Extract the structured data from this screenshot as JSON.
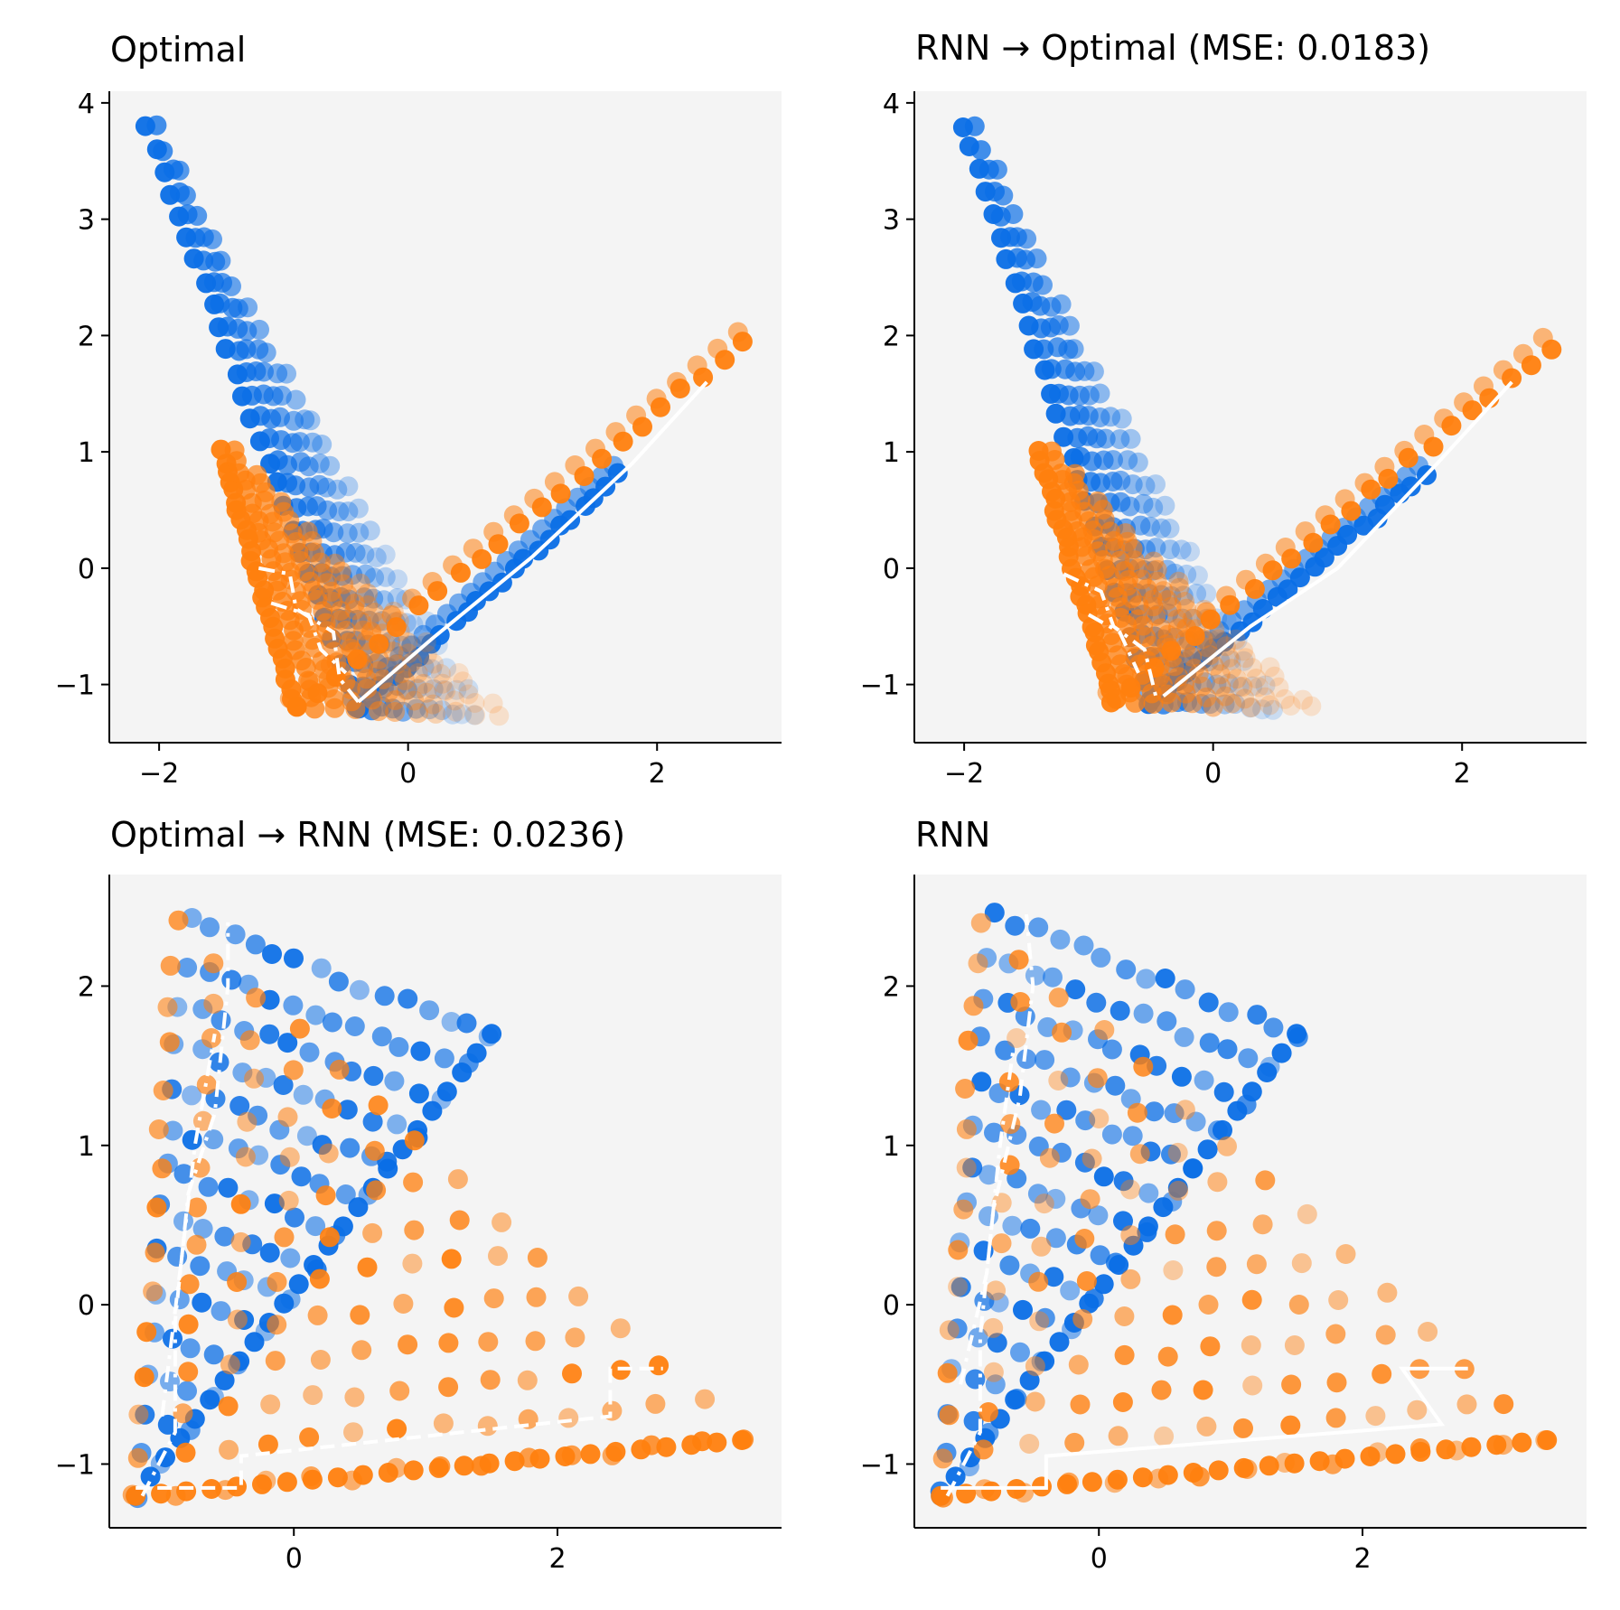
{
  "figure": {
    "colors": {
      "blue": "#0a6ee6",
      "orange": "#ff7f0e",
      "panel_bg": "#f4f4f4",
      "path": "#ffffff",
      "axis": "#000000"
    }
  },
  "chart_data": [
    {
      "type": "scatter",
      "title": "Optimal",
      "xlim": [
        -2.4,
        3.0
      ],
      "ylim": [
        -1.5,
        4.1
      ],
      "xticks": [
        -2,
        0,
        2
      ],
      "yticks": [
        -1,
        0,
        1,
        2,
        3,
        4
      ],
      "xtick_labels": [
        "−2",
        "0",
        "2"
      ],
      "ytick_labels": [
        "−1",
        "0",
        "1",
        "2",
        "3",
        "4"
      ],
      "grid": false,
      "series": [
        {
          "name": "blue",
          "color": "#0a6ee6",
          "shape": "v",
          "apex": [
            -0.4,
            -1.2
          ],
          "left_arm_end": [
            -2.1,
            3.8
          ],
          "right_arm_end": [
            1.7,
            0.8
          ],
          "spread": "fan"
        },
        {
          "name": "orange",
          "color": "#ff7f0e",
          "shape": "v",
          "apex": [
            -0.9,
            -1.2
          ],
          "left_arm_end": [
            -1.5,
            1.0
          ],
          "right_arm_end": [
            2.7,
            1.95
          ],
          "spread": "fan"
        }
      ],
      "paths": [
        {
          "style": "dashdot",
          "points": [
            [
              -1.2,
              0.0
            ],
            [
              -0.95,
              -0.05
            ],
            [
              -0.9,
              -0.35
            ],
            [
              -0.6,
              -0.55
            ],
            [
              -0.55,
              -0.95
            ],
            [
              -0.4,
              -1.15
            ]
          ]
        },
        {
          "style": "dashdot",
          "points": [
            [
              -1.1,
              -0.3
            ],
            [
              -0.8,
              -0.4
            ],
            [
              -0.7,
              -0.7
            ],
            [
              -0.5,
              -0.9
            ]
          ]
        },
        {
          "style": "solid",
          "points": [
            [
              -0.4,
              -1.15
            ],
            [
              0.2,
              -0.6
            ],
            [
              1.0,
              0.1
            ],
            [
              1.8,
              0.9
            ],
            [
              2.4,
              1.6
            ]
          ]
        }
      ]
    },
    {
      "type": "scatter",
      "title": "RNN → Optimal (MSE: 0.0183)",
      "xlim": [
        -2.4,
        3.0
      ],
      "ylim": [
        -1.5,
        4.1
      ],
      "xticks": [
        -2,
        0,
        2
      ],
      "yticks": [
        -1,
        0,
        1,
        2,
        3,
        4
      ],
      "xtick_labels": [
        "−2",
        "0",
        "2"
      ],
      "ytick_labels": [
        "−1",
        "0",
        "1",
        "2",
        "3",
        "4"
      ],
      "grid": false,
      "series": [
        {
          "name": "blue",
          "color": "#0a6ee6",
          "shape": "v",
          "apex": [
            -0.5,
            -1.15
          ],
          "left_arm_end": [
            -2.0,
            3.8
          ],
          "right_arm_end": [
            1.7,
            0.8
          ],
          "spread": "fan"
        },
        {
          "name": "orange",
          "color": "#ff7f0e",
          "shape": "v",
          "apex": [
            -0.8,
            -1.15
          ],
          "left_arm_end": [
            -1.4,
            1.0
          ],
          "right_arm_end": [
            2.7,
            1.9
          ],
          "spread": "fan"
        }
      ],
      "paths": [
        {
          "style": "dashdot",
          "points": [
            [
              -1.2,
              -0.05
            ],
            [
              -0.9,
              -0.2
            ],
            [
              -0.8,
              -0.5
            ],
            [
              -0.55,
              -0.7
            ],
            [
              -0.45,
              -1.15
            ]
          ]
        },
        {
          "style": "dashdot",
          "points": [
            [
              -1.0,
              -0.4
            ],
            [
              -0.75,
              -0.55
            ],
            [
              -0.6,
              -0.9
            ]
          ]
        },
        {
          "style": "solid",
          "points": [
            [
              -0.4,
              -1.1
            ],
            [
              0.3,
              -0.5
            ],
            [
              1.0,
              0.0
            ],
            [
              1.8,
              0.9
            ],
            [
              2.4,
              1.6
            ]
          ]
        }
      ]
    },
    {
      "type": "scatter",
      "title": "Optimal → RNN (MSE: 0.0236)",
      "xlim": [
        -1.4,
        3.7
      ],
      "ylim": [
        -1.4,
        2.7
      ],
      "xticks": [
        0,
        2
      ],
      "yticks": [
        -1,
        0,
        1,
        2
      ],
      "xtick_labels": [
        "0",
        "2"
      ],
      "ytick_labels": [
        "−1",
        "0",
        "1",
        "2"
      ],
      "grid": false,
      "series": [
        {
          "name": "blue",
          "color": "#0a6ee6",
          "shape": "triangle",
          "corners": [
            [
              -1.2,
              -1.2
            ],
            [
              -0.8,
              2.4
            ],
            [
              1.5,
              1.7
            ]
          ],
          "spread": "grid"
        },
        {
          "name": "orange",
          "color": "#ff7f0e",
          "shape": "triangle",
          "corners": [
            [
              -1.2,
              -1.2
            ],
            [
              -0.9,
              2.4
            ],
            [
              3.4,
              -0.85
            ]
          ],
          "spread": "grid"
        }
      ],
      "paths": [
        {
          "style": "dashdot",
          "points": [
            [
              -1.15,
              -1.2
            ],
            [
              -0.9,
              -0.8
            ],
            [
              -0.9,
              -0.1
            ],
            [
              -0.8,
              0.7
            ],
            [
              -0.6,
              1.2
            ],
            [
              -0.5,
              2.0
            ],
            [
              -0.5,
              2.4
            ]
          ]
        },
        {
          "style": "dashdot",
          "points": [
            [
              -1.0,
              -0.7
            ],
            [
              -0.85,
              0.3
            ],
            [
              -0.75,
              1.0
            ],
            [
              -0.6,
              1.7
            ]
          ]
        },
        {
          "style": "dashed",
          "points": [
            [
              -1.2,
              -1.15
            ],
            [
              -0.4,
              -1.15
            ],
            [
              -0.4,
              -0.95
            ],
            [
              2.4,
              -0.7
            ],
            [
              2.4,
              -0.4
            ],
            [
              2.8,
              -0.4
            ]
          ]
        }
      ]
    },
    {
      "type": "scatter",
      "title": "RNN",
      "xlim": [
        -1.4,
        3.7
      ],
      "ylim": [
        -1.4,
        2.7
      ],
      "xticks": [
        0,
        2
      ],
      "yticks": [
        -1,
        0,
        1,
        2
      ],
      "xtick_labels": [
        "0",
        "2"
      ],
      "ytick_labels": [
        "−1",
        "0",
        "1",
        "2"
      ],
      "grid": false,
      "series": [
        {
          "name": "blue",
          "color": "#0a6ee6",
          "shape": "triangle",
          "corners": [
            [
              -1.2,
              -1.2
            ],
            [
              -0.8,
              2.45
            ],
            [
              1.5,
              1.7
            ]
          ],
          "spread": "grid"
        },
        {
          "name": "orange",
          "color": "#ff7f0e",
          "shape": "triangle",
          "corners": [
            [
              -1.2,
              -1.2
            ],
            [
              -0.9,
              2.4
            ],
            [
              3.4,
              -0.85
            ]
          ],
          "spread": "grid"
        }
      ],
      "paths": [
        {
          "style": "dashdot",
          "points": [
            [
              -1.15,
              -1.2
            ],
            [
              -0.9,
              -0.8
            ],
            [
              -0.9,
              -0.2
            ],
            [
              -0.8,
              0.6
            ],
            [
              -0.6,
              1.3
            ],
            [
              -0.5,
              2.0
            ],
            [
              -0.55,
              2.45
            ]
          ]
        },
        {
          "style": "dashdot",
          "points": [
            [
              -1.05,
              -0.5
            ],
            [
              -0.85,
              0.2
            ],
            [
              -0.75,
              1.0
            ],
            [
              -0.65,
              1.6
            ]
          ]
        },
        {
          "style": "solid",
          "points": [
            [
              -1.2,
              -1.15
            ],
            [
              -0.4,
              -1.15
            ],
            [
              -0.4,
              -0.95
            ],
            [
              2.6,
              -0.75
            ],
            [
              2.3,
              -0.4
            ],
            [
              2.8,
              -0.4
            ]
          ]
        }
      ]
    }
  ]
}
